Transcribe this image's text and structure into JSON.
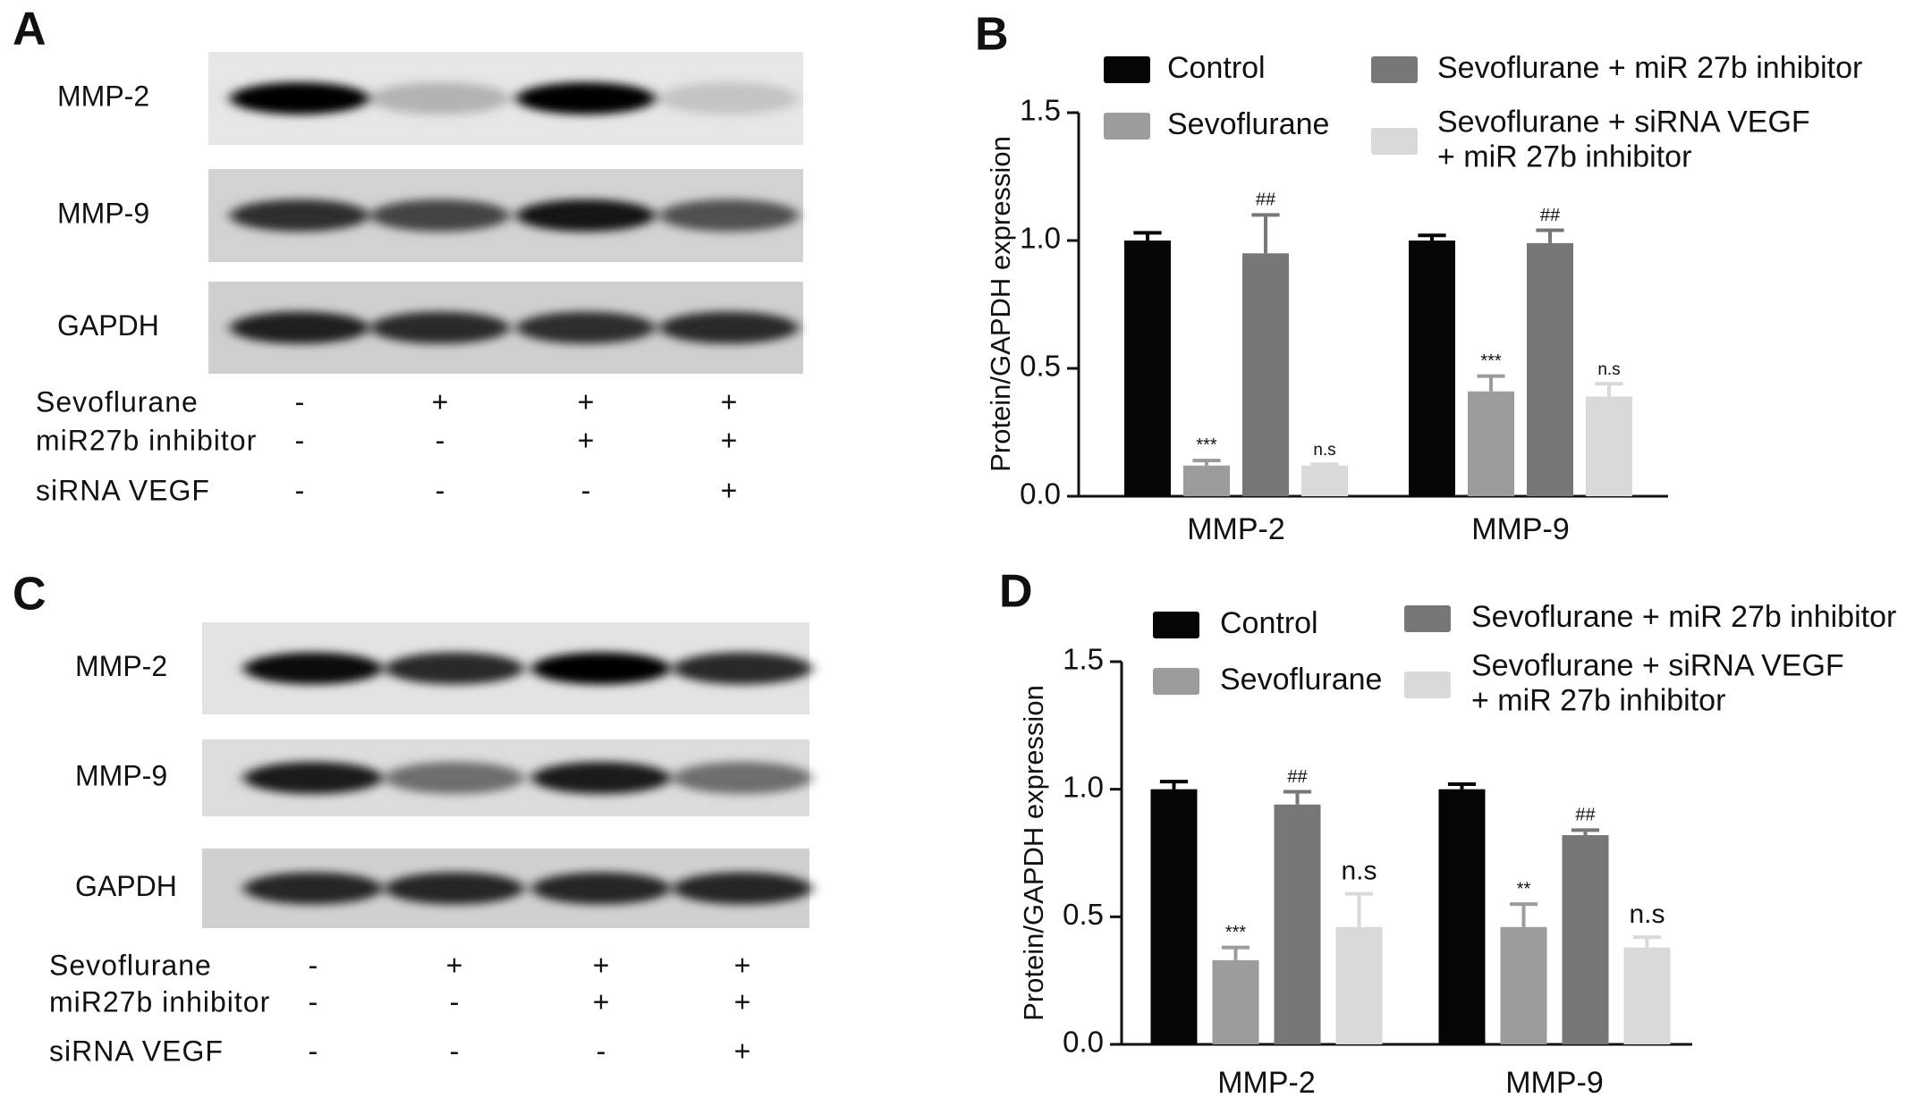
{
  "blots": [
    {
      "panel_label": "A",
      "rows": [
        "MMP-2",
        "MMP-9",
        "GAPDH"
      ],
      "conditions": [
        {
          "name": "Sevoflurane",
          "marks": [
            "-",
            "+",
            "+",
            "+"
          ]
        },
        {
          "name": "miR27b inhibitor",
          "marks": [
            "-",
            "-",
            "+",
            "+"
          ]
        },
        {
          "name": "siRNA VEGF",
          "marks": [
            "-",
            "-",
            "-",
            "+"
          ]
        }
      ]
    },
    {
      "panel_label": "C",
      "rows": [
        "MMP-2",
        "MMP-9",
        "GAPDH"
      ],
      "conditions": [
        {
          "name": "Sevoflurane",
          "marks": [
            "-",
            "+",
            "+",
            "+"
          ]
        },
        {
          "name": "miR27b inhibitor",
          "marks": [
            "-",
            "-",
            "+",
            "+"
          ]
        },
        {
          "name": "siRNA VEGF",
          "marks": [
            "-",
            "-",
            "-",
            "+"
          ]
        }
      ]
    }
  ],
  "chart_data": [
    {
      "type": "bar",
      "panel_label": "B",
      "ylabel": "Protein/GAPDH expression",
      "categories": [
        "MMP-2",
        "MMP-9"
      ],
      "ylim": [
        0,
        1.5
      ],
      "yticks": [
        {
          "value": 0,
          "label": "0.0"
        },
        {
          "value": 0.5,
          "label": "0.5"
        },
        {
          "value": 1,
          "label": "1.0"
        },
        {
          "value": 1.5,
          "label": "1.5"
        }
      ],
      "series": [
        {
          "name": "Control",
          "color": "#050505",
          "values": [
            1.0,
            1.0
          ],
          "errors": [
            0.03,
            0.02
          ]
        },
        {
          "name": "Sevoflurane",
          "color": "#9c9c9c",
          "values": [
            0.12,
            0.41
          ],
          "errors": [
            0.02,
            0.06
          ],
          "annotations": [
            "***",
            "***"
          ]
        },
        {
          "name": "Sevoflurane + miR 27b inhibitor",
          "color": "#777777",
          "values": [
            0.95,
            0.99
          ],
          "errors": [
            0.15,
            0.05
          ],
          "annotations": [
            "##",
            "##"
          ]
        },
        {
          "name": "Sevoflurane + siRNA VEGF + miR 27b inhibitor",
          "color": "#d9d9d9",
          "values": [
            0.12,
            0.39
          ],
          "errors": [
            0.005,
            0.05
          ],
          "annotations": [
            "n.s",
            "n.s"
          ]
        }
      ]
    },
    {
      "type": "bar",
      "panel_label": "D",
      "ylabel": "Protein/GAPDH expression",
      "categories": [
        "MMP-2",
        "MMP-9"
      ],
      "ylim": [
        0,
        1.5
      ],
      "yticks": [
        {
          "value": 0,
          "label": "0.0"
        },
        {
          "value": 0.5,
          "label": "0.5"
        },
        {
          "value": 1,
          "label": "1.0"
        },
        {
          "value": 1.5,
          "label": "1.5"
        }
      ],
      "series": [
        {
          "name": "Control",
          "color": "#050505",
          "values": [
            1.0,
            1.0
          ],
          "errors": [
            0.03,
            0.02
          ]
        },
        {
          "name": "Sevoflurane",
          "color": "#9c9c9c",
          "values": [
            0.33,
            0.46
          ],
          "errors": [
            0.05,
            0.09
          ],
          "annotations": [
            "***",
            "**"
          ]
        },
        {
          "name": "Sevoflurane + miR 27b inhibitor",
          "color": "#777777",
          "values": [
            0.94,
            0.82
          ],
          "errors": [
            0.05,
            0.02
          ],
          "annotations": [
            "##",
            "##"
          ]
        },
        {
          "name": "Sevoflurane + siRNA VEGF + miR 27b inhibitor",
          "color": "#d9d9d9",
          "values": [
            0.46,
            0.38
          ],
          "errors": [
            0.13,
            0.04
          ],
          "annotations": [
            "n.s",
            "n.s"
          ]
        }
      ]
    }
  ]
}
